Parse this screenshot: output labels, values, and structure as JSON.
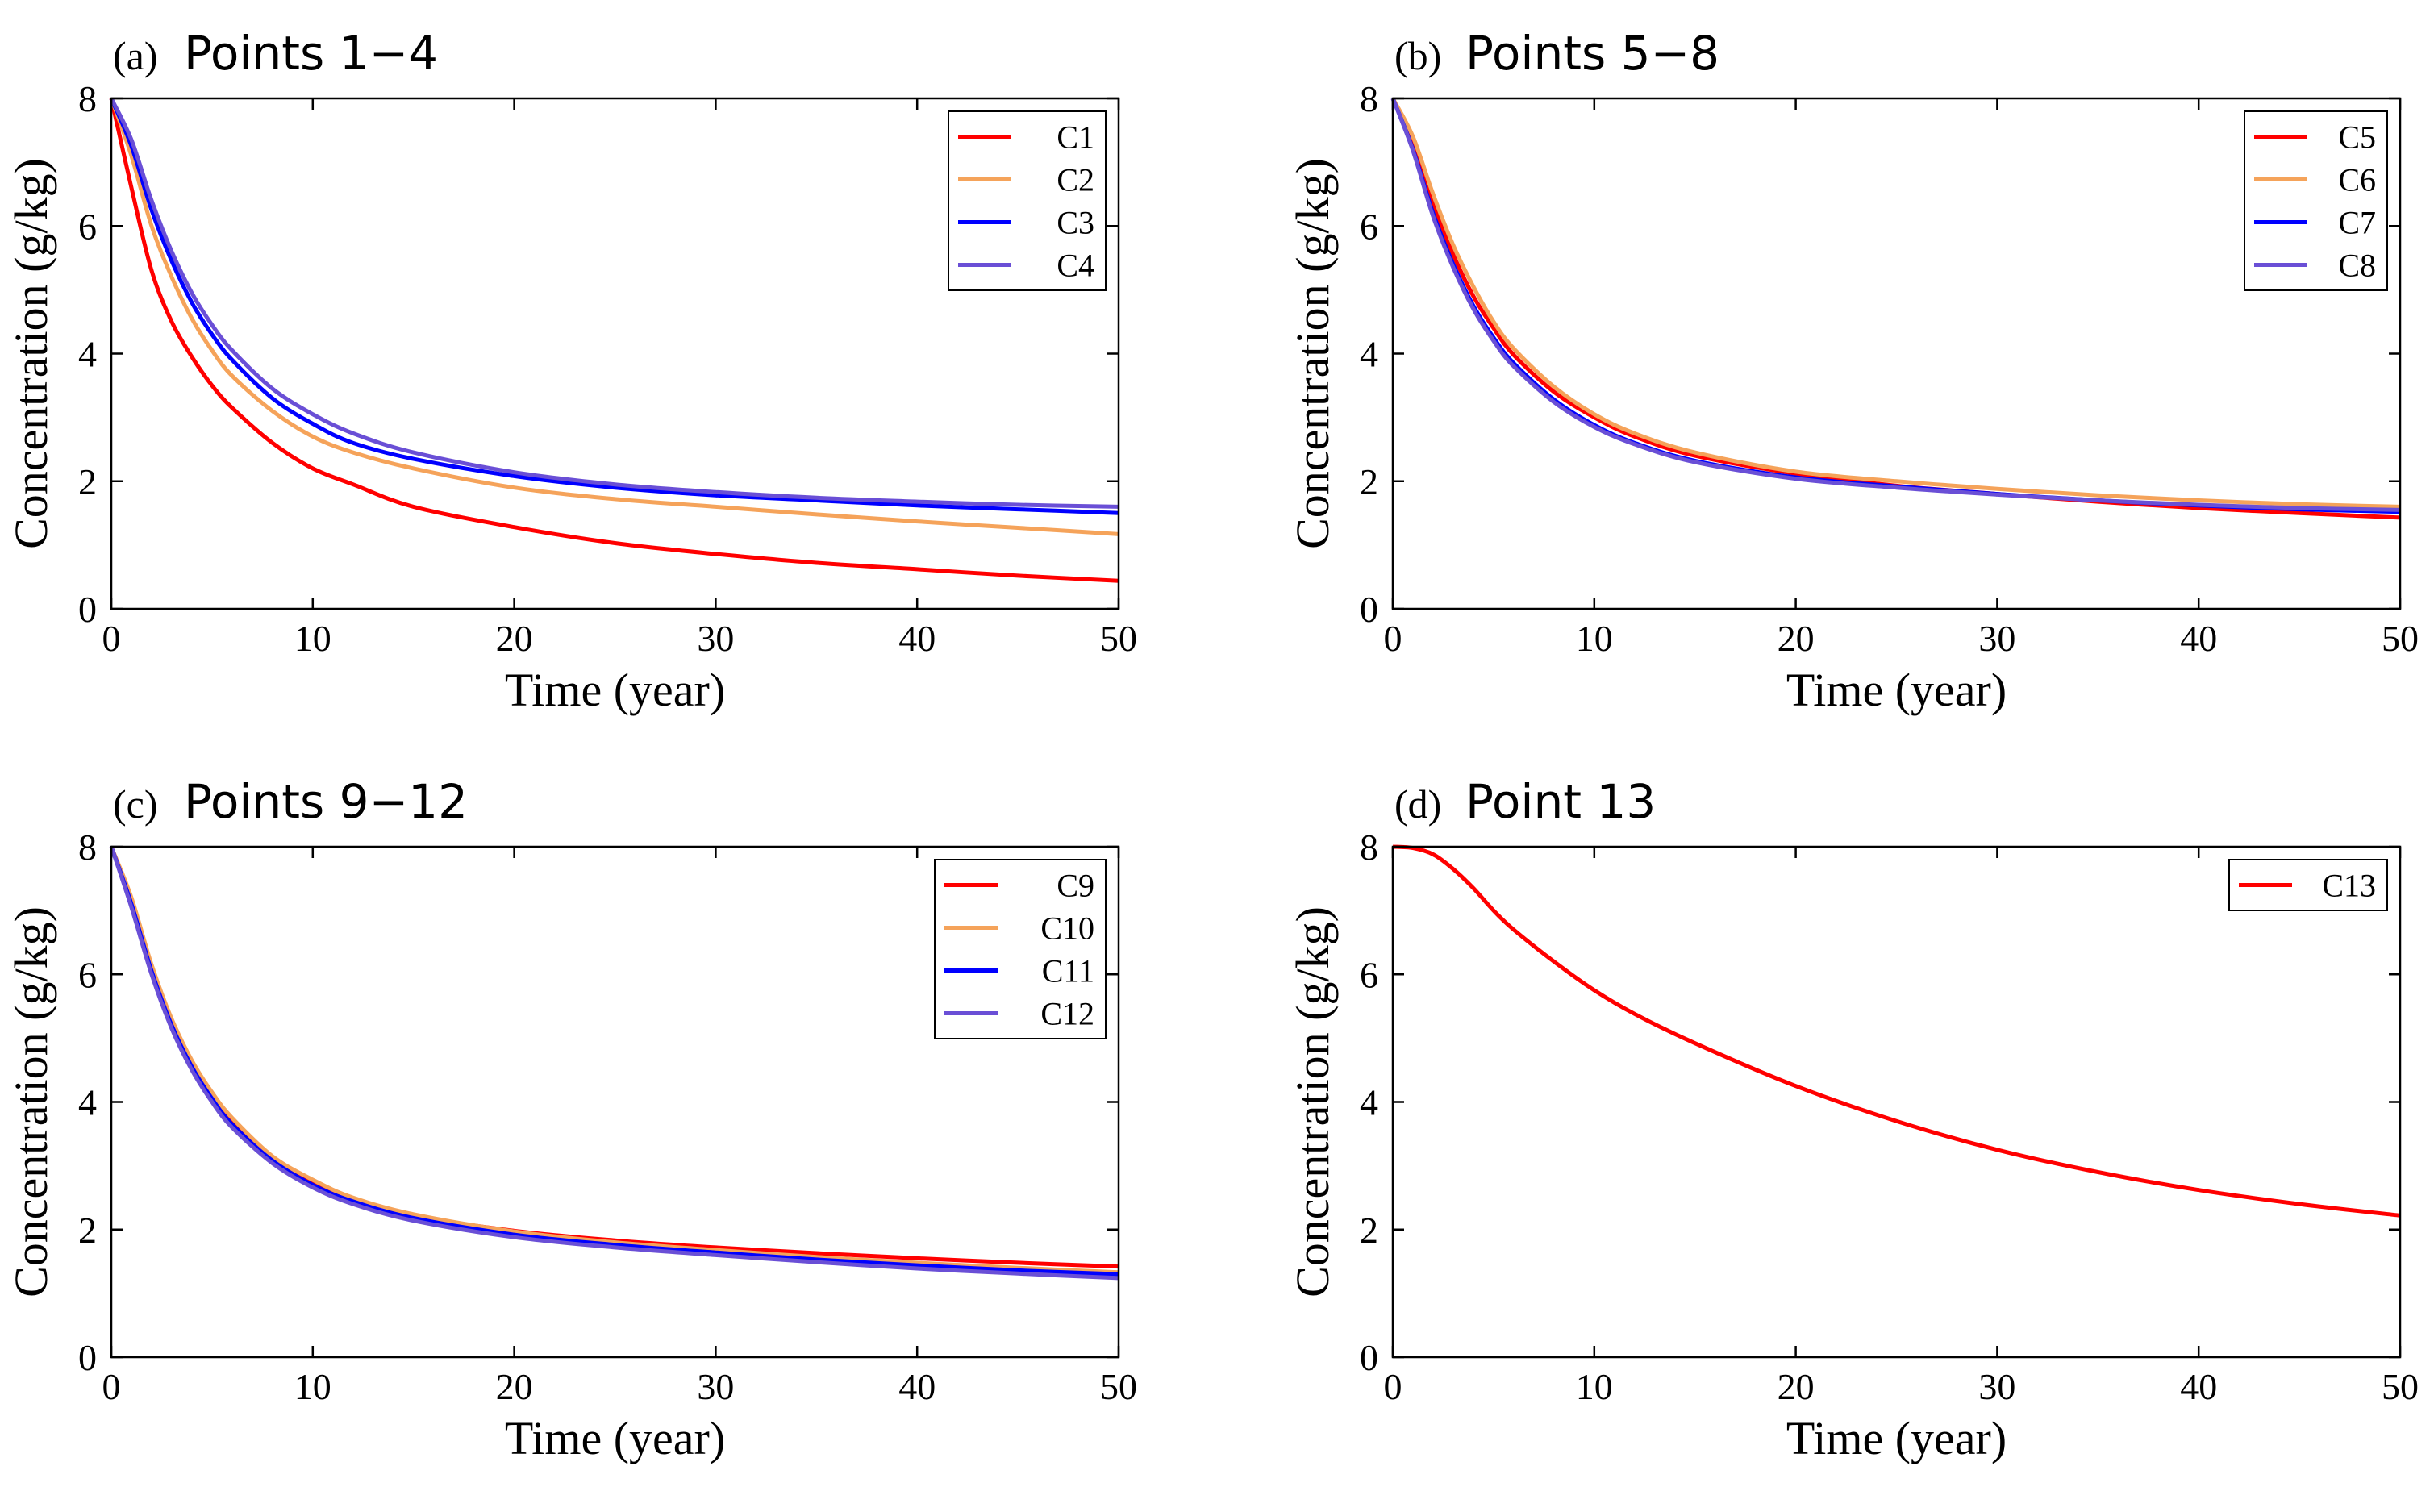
{
  "chart_data": [
    {
      "id": "a",
      "type": "line",
      "tag": "(a)",
      "title": "Points 1−4",
      "xlabel": "Time (year)",
      "ylabel": "Concentration (g/kg)",
      "xlim": [
        0,
        50
      ],
      "ylim": [
        0,
        8
      ],
      "xticks": [
        0,
        10,
        20,
        30,
        40,
        50
      ],
      "yticks": [
        0,
        2,
        4,
        6,
        8
      ],
      "x": [
        0,
        1,
        2,
        3,
        4,
        5,
        6,
        8,
        10,
        12,
        15,
        20,
        25,
        30,
        35,
        40,
        45,
        50
      ],
      "legend_position": "top-right",
      "series": [
        {
          "name": "C1",
          "color": "#ff0000",
          "values": [
            8.0,
            6.6,
            5.3,
            4.5,
            3.95,
            3.5,
            3.15,
            2.6,
            2.2,
            1.95,
            1.6,
            1.28,
            1.03,
            0.86,
            0.72,
            0.62,
            0.52,
            0.44
          ]
        },
        {
          "name": "C2",
          "color": "#f5a35a",
          "values": [
            8.0,
            7.1,
            6.0,
            5.2,
            4.55,
            4.05,
            3.65,
            3.1,
            2.7,
            2.45,
            2.2,
            1.9,
            1.72,
            1.6,
            1.48,
            1.37,
            1.27,
            1.17
          ]
        },
        {
          "name": "C3",
          "color": "#0000ff",
          "values": [
            8.0,
            7.25,
            6.25,
            5.45,
            4.8,
            4.3,
            3.9,
            3.3,
            2.9,
            2.6,
            2.35,
            2.08,
            1.9,
            1.78,
            1.7,
            1.62,
            1.56,
            1.5
          ]
        },
        {
          "name": "C4",
          "color": "#6a4fd6",
          "values": [
            8.0,
            7.35,
            6.4,
            5.6,
            4.95,
            4.45,
            4.05,
            3.45,
            3.05,
            2.75,
            2.45,
            2.14,
            1.95,
            1.83,
            1.74,
            1.68,
            1.63,
            1.6
          ]
        }
      ]
    },
    {
      "id": "b",
      "type": "line",
      "tag": "(b)",
      "title": "Points 5−8",
      "xlabel": "Time (year)",
      "ylabel": "Concentration (g/kg)",
      "xlim": [
        0,
        50
      ],
      "ylim": [
        0,
        8
      ],
      "xticks": [
        0,
        10,
        20,
        30,
        40,
        50
      ],
      "yticks": [
        0,
        2,
        4,
        6,
        8
      ],
      "x": [
        0,
        1,
        2,
        3,
        4,
        5,
        6,
        8,
        10,
        12,
        15,
        20,
        25,
        30,
        35,
        40,
        45,
        50
      ],
      "legend_position": "top-right",
      "series": [
        {
          "name": "C5",
          "color": "#ff0000",
          "values": [
            8.0,
            7.3,
            6.35,
            5.55,
            4.9,
            4.4,
            3.98,
            3.4,
            3.0,
            2.7,
            2.4,
            2.12,
            1.93,
            1.8,
            1.68,
            1.58,
            1.5,
            1.43
          ]
        },
        {
          "name": "C6",
          "color": "#f5a35a",
          "values": [
            8.0,
            7.4,
            6.5,
            5.7,
            5.05,
            4.5,
            4.08,
            3.48,
            3.05,
            2.75,
            2.45,
            2.15,
            2.0,
            1.88,
            1.78,
            1.7,
            1.64,
            1.6
          ]
        },
        {
          "name": "C7",
          "color": "#0000ff",
          "values": [
            8.0,
            7.2,
            6.2,
            5.4,
            4.75,
            4.25,
            3.85,
            3.28,
            2.88,
            2.6,
            2.32,
            2.06,
            1.92,
            1.8,
            1.7,
            1.62,
            1.56,
            1.52
          ]
        },
        {
          "name": "C8",
          "color": "#6a4fd6",
          "values": [
            8.0,
            7.18,
            6.15,
            5.35,
            4.7,
            4.2,
            3.8,
            3.24,
            2.85,
            2.58,
            2.3,
            2.04,
            1.9,
            1.79,
            1.7,
            1.63,
            1.58,
            1.55
          ]
        }
      ]
    },
    {
      "id": "c",
      "type": "line",
      "tag": "(c)",
      "title": "Points 9−12",
      "xlabel": "Time (year)",
      "ylabel": "Concentration (g/kg)",
      "xlim": [
        0,
        50
      ],
      "ylim": [
        0,
        8
      ],
      "xticks": [
        0,
        10,
        20,
        30,
        40,
        50
      ],
      "yticks": [
        0,
        2,
        4,
        6,
        8
      ],
      "x": [
        0,
        1,
        2,
        3,
        4,
        5,
        6,
        8,
        10,
        12,
        15,
        20,
        25,
        30,
        35,
        40,
        45,
        50
      ],
      "legend_position": "top-right",
      "series": [
        {
          "name": "C9",
          "color": "#ff0000",
          "values": [
            8.0,
            7.15,
            6.1,
            5.25,
            4.6,
            4.1,
            3.7,
            3.12,
            2.75,
            2.48,
            2.22,
            1.98,
            1.83,
            1.72,
            1.63,
            1.55,
            1.48,
            1.42
          ]
        },
        {
          "name": "C10",
          "color": "#f5a35a",
          "values": [
            8.0,
            7.2,
            6.15,
            5.3,
            4.65,
            4.15,
            3.75,
            3.15,
            2.78,
            2.5,
            2.24,
            1.97,
            1.8,
            1.68,
            1.57,
            1.48,
            1.4,
            1.33
          ]
        },
        {
          "name": "C11",
          "color": "#0000ff",
          "values": [
            8.0,
            7.1,
            6.05,
            5.2,
            4.55,
            4.05,
            3.65,
            3.08,
            2.7,
            2.44,
            2.18,
            1.92,
            1.76,
            1.64,
            1.53,
            1.44,
            1.36,
            1.3
          ]
        },
        {
          "name": "C12",
          "color": "#6a4fd6",
          "values": [
            8.0,
            7.05,
            6.0,
            5.15,
            4.5,
            4.0,
            3.6,
            3.04,
            2.66,
            2.4,
            2.14,
            1.88,
            1.72,
            1.6,
            1.49,
            1.39,
            1.31,
            1.24
          ]
        }
      ]
    },
    {
      "id": "d",
      "type": "line",
      "tag": "(d)",
      "title": "Point 13",
      "xlabel": "Time (year)",
      "ylabel": "Concentration (g/kg)",
      "xlim": [
        0,
        50
      ],
      "ylim": [
        0,
        8
      ],
      "xticks": [
        0,
        10,
        20,
        30,
        40,
        50
      ],
      "yticks": [
        0,
        2,
        4,
        6,
        8
      ],
      "x": [
        0,
        1,
        2,
        3,
        4,
        5,
        6,
        8,
        10,
        12,
        15,
        20,
        25,
        30,
        35,
        40,
        45,
        50
      ],
      "legend_position": "top-right",
      "series": [
        {
          "name": "C13",
          "color": "#ff0000",
          "values": [
            8.0,
            7.98,
            7.88,
            7.65,
            7.35,
            7.0,
            6.7,
            6.2,
            5.75,
            5.38,
            4.92,
            4.25,
            3.7,
            3.25,
            2.9,
            2.62,
            2.4,
            2.22
          ]
        }
      ]
    }
  ]
}
